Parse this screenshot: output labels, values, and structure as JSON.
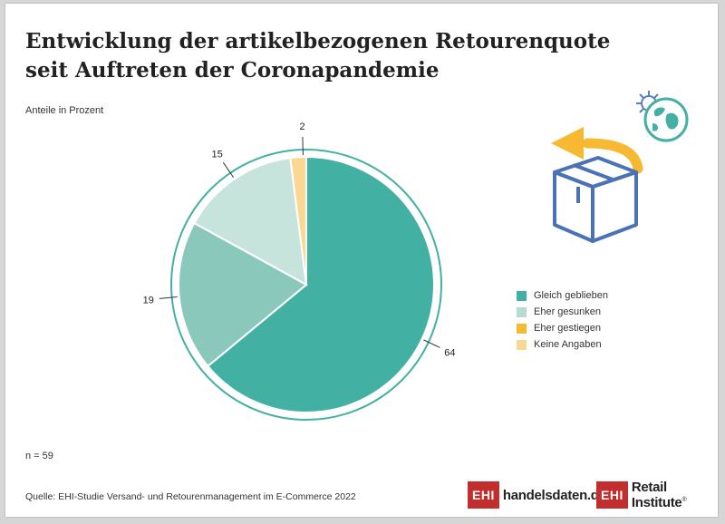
{
  "title": "Entwicklung der artikelbezogenen Retourenquote seit Auftreten der Coronapandemie",
  "subtitle": "Anteile in Prozent",
  "note": "n = 59",
  "source": "Quelle: EHI-Studie Versand- und Retourenmanagement im E-Commerce 2022",
  "logos": {
    "handelsdaten": {
      "box": "EHI",
      "text": "handelsdaten.de"
    },
    "ehi": {
      "box": "EHI",
      "text": "Retail Institute",
      "mark": "®"
    }
  },
  "icon": "returned-package-globe-virus-icon",
  "chart_data": {
    "type": "pie",
    "categories": [
      "Gleich geblieben",
      "Eher gesunken",
      "Eher gestiegen",
      "Keine Angaben"
    ],
    "values": [
      64,
      19,
      15,
      2
    ],
    "labels": [
      "64",
      "19",
      "15",
      "2"
    ],
    "colors": [
      "#42b0a2",
      "#8ac8bc",
      "#c7e4dc",
      "#fad893"
    ],
    "legend_colors": [
      "#42b0a2",
      "#b5dcd3",
      "#f7b932",
      "#fad893"
    ],
    "start_angle": "12 o'clock",
    "direction": "clockwise",
    "legend_position": "right"
  }
}
